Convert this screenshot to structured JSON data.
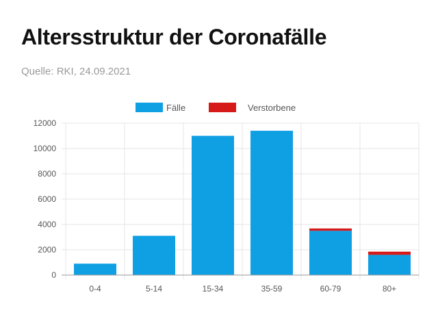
{
  "page": {
    "title": "Altersstruktur der Coronafälle",
    "subtitle": "Quelle: RKI, 24.09.2021"
  },
  "chart_data": {
    "type": "bar",
    "stacked": true,
    "categories": [
      "0-4",
      "5-14",
      "15-34",
      "35-59",
      "60-79",
      "80+"
    ],
    "series": [
      {
        "name": "Fälle",
        "color": "#0f9fe3",
        "values": [
          900,
          3100,
          11000,
          11400,
          3500,
          1600
        ]
      },
      {
        "name": "Verstorbene",
        "color": "#d61a1a",
        "values": [
          0,
          0,
          0,
          0,
          180,
          250
        ]
      }
    ],
    "ylim": [
      0,
      12000
    ],
    "yticks": [
      0,
      2000,
      4000,
      6000,
      8000,
      10000,
      12000
    ],
    "grid": true,
    "legend_position": "top-center"
  }
}
